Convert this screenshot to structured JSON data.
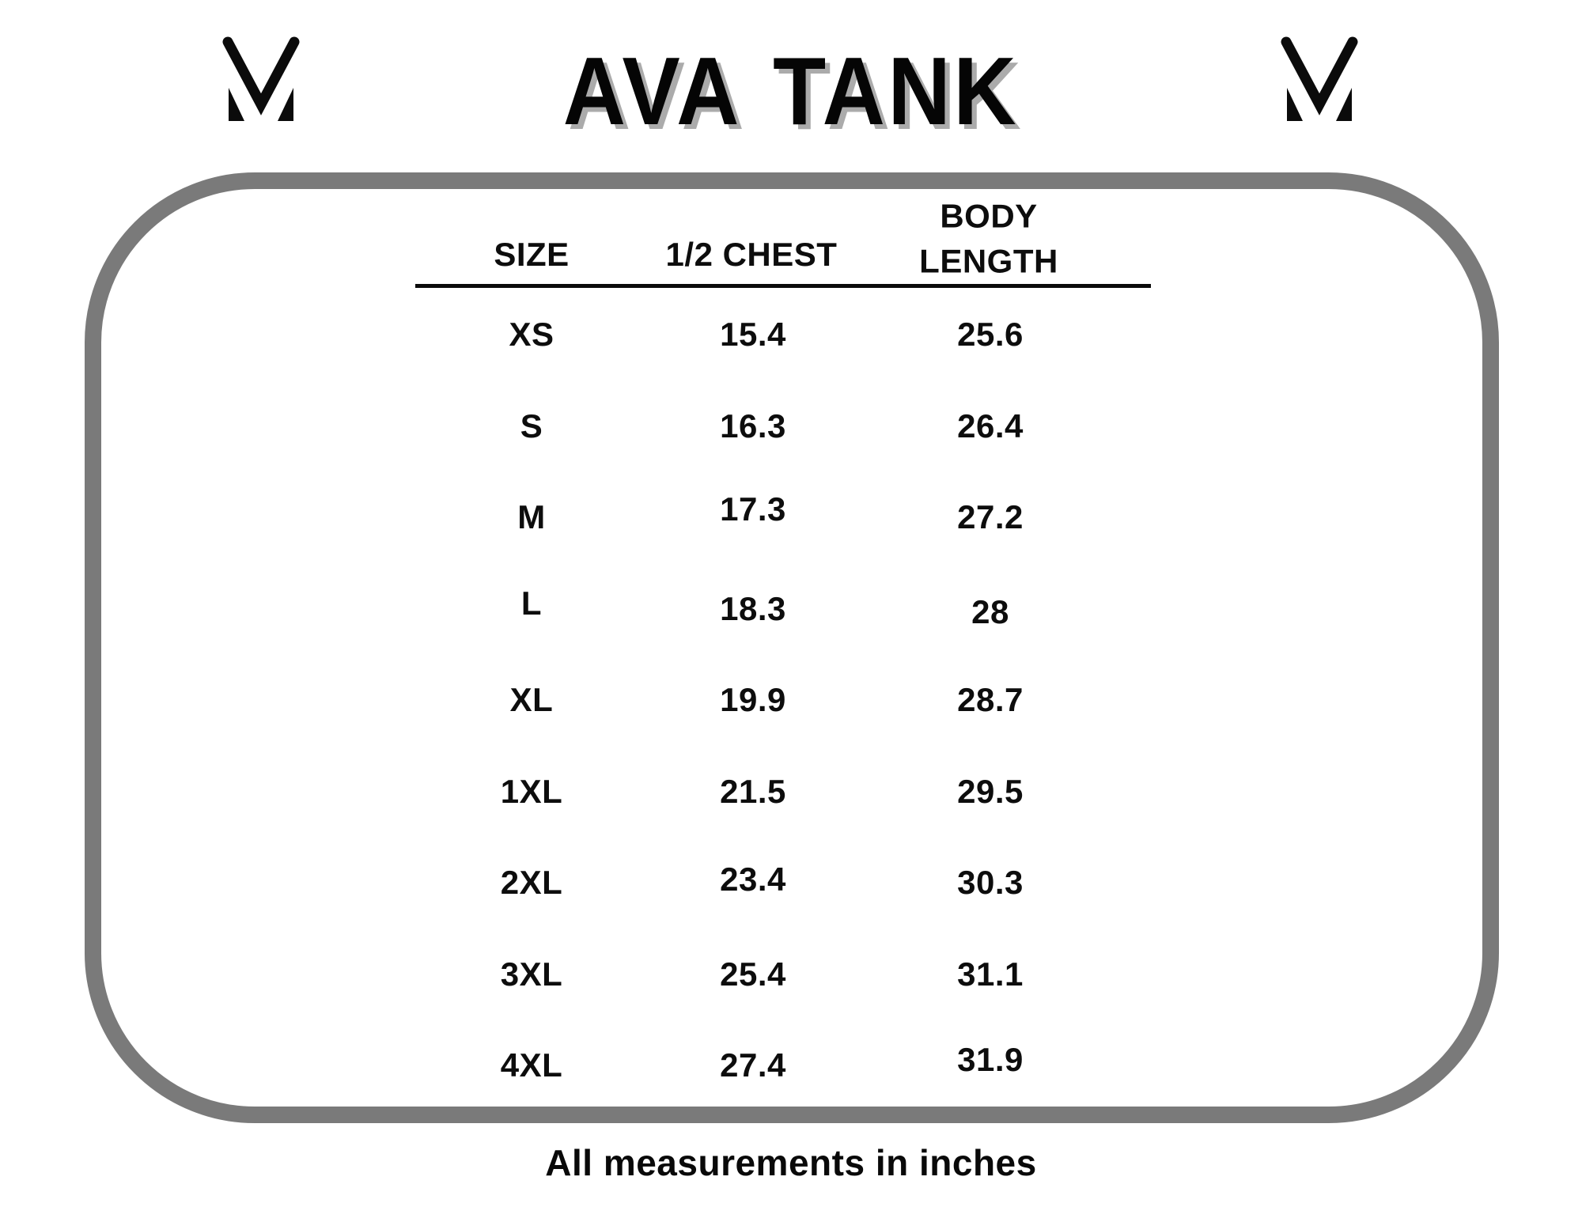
{
  "page": {
    "title": "AVA TANK",
    "brand_icon": "mv-monogram"
  },
  "chart_data": {
    "type": "table",
    "title": "AVA TANK",
    "columns": [
      "SIZE",
      "1/2 CHEST",
      "BODY LENGTH"
    ],
    "rows": [
      [
        "XS",
        "15.4",
        "25.6"
      ],
      [
        "S",
        "16.3",
        "26.4"
      ],
      [
        "M",
        "17.3",
        "27.2"
      ],
      [
        "L",
        "18.3",
        "28"
      ],
      [
        "XL",
        "19.9",
        "28.7"
      ],
      [
        "1XL",
        "21.5",
        "29.5"
      ],
      [
        "2XL",
        "23.4",
        "30.3"
      ],
      [
        "3XL",
        "25.4",
        "31.1"
      ],
      [
        "4XL",
        "27.4",
        "31.9"
      ]
    ],
    "footnote": "All measurements in inches",
    "units": "inches"
  },
  "colors": {
    "panel_border": "#7a7a7a",
    "title_shadow": "#ababab",
    "ink": "#0d0d0d"
  }
}
